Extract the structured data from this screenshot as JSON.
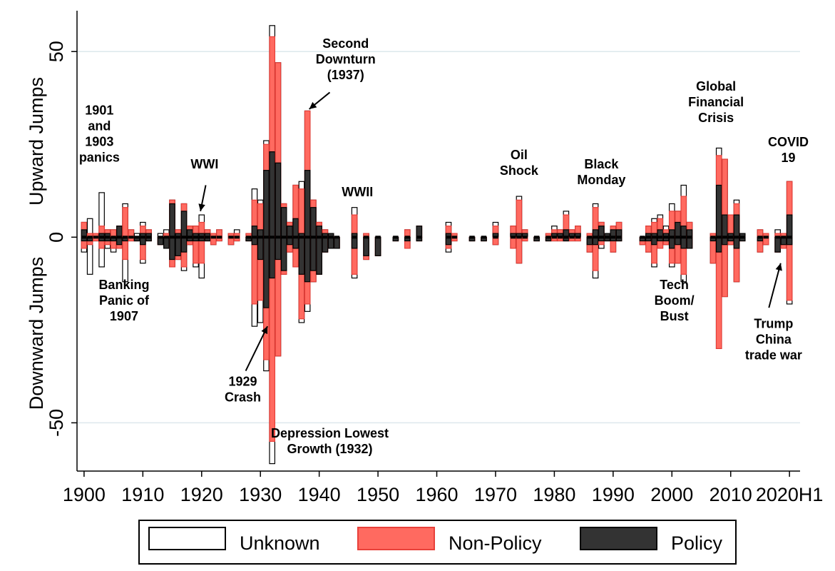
{
  "chart_data": {
    "type": "bar",
    "title": "",
    "ylabel_top": "Upward Jumps",
    "ylabel_bottom": "Downward Jumps",
    "xlabel": "",
    "ylim": [
      -63,
      61
    ],
    "xlim": [
      1898.8,
      2021.8
    ],
    "yticks": [
      -50,
      0,
      50
    ],
    "ytick_labels": [
      "-50",
      "0",
      "50"
    ],
    "xticks": [
      1900,
      1910,
      1920,
      1930,
      1940,
      1950,
      1960,
      1970,
      1980,
      1990,
      2000,
      2010,
      2020
    ],
    "xtick_labels": [
      "1900",
      "1910",
      "1920",
      "1930",
      "1940",
      "1950",
      "1960",
      "1970",
      "1980",
      "1990",
      "2000",
      "2010",
      "2020H1"
    ],
    "grid": true,
    "legend_position": "bottom",
    "series": [
      {
        "name": "Unknown",
        "key": "unknown",
        "color": "#ffffff",
        "stroke": "#000000"
      },
      {
        "name": "Non-Policy",
        "key": "nonpolicy",
        "color": "#ff6a60",
        "stroke": "#e8403a"
      },
      {
        "name": "Policy",
        "key": "policy",
        "color": "#333333",
        "stroke": "#000000"
      }
    ],
    "bars": [
      {
        "x": 1900,
        "up": [
          4,
          4,
          2
        ],
        "down": [
          -4,
          -3,
          -1
        ]
      },
      {
        "x": 1901,
        "up": [
          5,
          1,
          0
        ],
        "down": [
          -10,
          -2,
          -1
        ]
      },
      {
        "x": 1902,
        "up": [
          1,
          1,
          0
        ],
        "down": [
          -1,
          -1,
          0
        ]
      },
      {
        "x": 1903,
        "up": [
          12,
          3,
          1
        ],
        "down": [
          -8,
          -3,
          -1
        ]
      },
      {
        "x": 1904,
        "up": [
          2,
          2,
          1
        ],
        "down": [
          -3,
          -2,
          -1
        ]
      },
      {
        "x": 1905,
        "up": [
          2,
          2,
          0
        ],
        "down": [
          -4,
          -3,
          -1
        ]
      },
      {
        "x": 1906,
        "up": [
          3,
          3,
          3
        ],
        "down": [
          -3,
          -3,
          -2
        ]
      },
      {
        "x": 1907,
        "up": [
          9,
          8,
          0
        ],
        "down": [
          -12,
          -6,
          -1
        ]
      },
      {
        "x": 1908,
        "up": [
          2,
          2,
          0
        ],
        "down": [
          -1,
          -1,
          0
        ]
      },
      {
        "x": 1909,
        "up": [
          1,
          0,
          0
        ],
        "down": [
          -1,
          -1,
          -1
        ]
      },
      {
        "x": 1910,
        "up": [
          4,
          3,
          1
        ],
        "down": [
          -7,
          -6,
          -2
        ]
      },
      {
        "x": 1911,
        "up": [
          2,
          2,
          1
        ],
        "down": [
          -1,
          -1,
          -1
        ]
      },
      {
        "x": 1913,
        "up": [
          1,
          0,
          0
        ],
        "down": [
          -2,
          -2,
          -2
        ]
      },
      {
        "x": 1914,
        "up": [
          2,
          1,
          0
        ],
        "down": [
          -3,
          -3,
          -3
        ]
      },
      {
        "x": 1915,
        "up": [
          10,
          10,
          9
        ],
        "down": [
          -8,
          -8,
          -6
        ]
      },
      {
        "x": 1916,
        "up": [
          2,
          2,
          1
        ],
        "down": [
          -6,
          -6,
          -5
        ]
      },
      {
        "x": 1917,
        "up": [
          9,
          9,
          7
        ],
        "down": [
          -9,
          -8,
          -4
        ]
      },
      {
        "x": 1918,
        "up": [
          3,
          3,
          2
        ],
        "down": [
          -2,
          -2,
          -1
        ]
      },
      {
        "x": 1919,
        "up": [
          3,
          3,
          1
        ],
        "down": [
          -8,
          -7,
          -1
        ]
      },
      {
        "x": 1920,
        "up": [
          6,
          4,
          1
        ],
        "down": [
          -11,
          -7,
          -1
        ]
      },
      {
        "x": 1921,
        "up": [
          2,
          2,
          1
        ],
        "down": [
          -1,
          -1,
          -1
        ]
      },
      {
        "x": 1922,
        "up": [
          1,
          1,
          0
        ],
        "down": [
          -2,
          -2,
          0
        ]
      },
      {
        "x": 1923,
        "up": [
          2,
          2,
          0
        ],
        "down": [
          -1,
          -1,
          0
        ]
      },
      {
        "x": 1925,
        "up": [
          1,
          1,
          0
        ],
        "down": [
          -2,
          -2,
          0
        ]
      },
      {
        "x": 1926,
        "up": [
          2,
          1,
          0
        ],
        "down": [
          -1,
          -1,
          0
        ]
      },
      {
        "x": 1928,
        "up": [
          1,
          1,
          0
        ],
        "down": [
          -1,
          -1,
          -1
        ]
      },
      {
        "x": 1929,
        "up": [
          13,
          10,
          3
        ],
        "down": [
          -24,
          -18,
          -2
        ]
      },
      {
        "x": 1930,
        "up": [
          10,
          9,
          2
        ],
        "down": [
          -23,
          -17,
          -6
        ]
      },
      {
        "x": 1931,
        "up": [
          26,
          25,
          18
        ],
        "down": [
          -36,
          -33,
          -19
        ]
      },
      {
        "x": 1932,
        "up": [
          57,
          54,
          23
        ],
        "down": [
          -61,
          -55,
          -11
        ]
      },
      {
        "x": 1933,
        "up": [
          47,
          47,
          20
        ],
        "down": [
          -32,
          -32,
          -6
        ]
      },
      {
        "x": 1934,
        "up": [
          9,
          9,
          8
        ],
        "down": [
          -10,
          -10,
          -9
        ]
      },
      {
        "x": 1935,
        "up": [
          4,
          4,
          3
        ],
        "down": [
          -4,
          -4,
          -2
        ]
      },
      {
        "x": 1936,
        "up": [
          14,
          14,
          5
        ],
        "down": [
          -8,
          -8,
          -3
        ]
      },
      {
        "x": 1937,
        "up": [
          15,
          13,
          1
        ],
        "down": [
          -23,
          -22,
          -10
        ]
      },
      {
        "x": 1938,
        "up": [
          34,
          34,
          18
        ],
        "down": [
          -20,
          -18,
          -12
        ]
      },
      {
        "x": 1939,
        "up": [
          10,
          10,
          8
        ],
        "down": [
          -12,
          -12,
          -9
        ]
      },
      {
        "x": 1940,
        "up": [
          4,
          4,
          3
        ],
        "down": [
          -10,
          -10,
          -10
        ]
      },
      {
        "x": 1941,
        "up": [
          2,
          2,
          1
        ],
        "down": [
          -4,
          -4,
          -4
        ]
      },
      {
        "x": 1942,
        "up": [
          1,
          1,
          1
        ],
        "down": [
          -3,
          -3,
          -3
        ]
      },
      {
        "x": 1943,
        "up": [
          0,
          0,
          0
        ],
        "down": [
          -3,
          -3,
          -3
        ]
      },
      {
        "x": 1946,
        "up": [
          8,
          6,
          1
        ],
        "down": [
          -11,
          -10,
          -3
        ]
      },
      {
        "x": 1948,
        "up": [
          1,
          1,
          0
        ],
        "down": [
          -6,
          -6,
          -5
        ]
      },
      {
        "x": 1950,
        "up": [
          0,
          0,
          0
        ],
        "down": [
          -5,
          -5,
          -5
        ]
      },
      {
        "x": 1953,
        "up": [
          0,
          0,
          0
        ],
        "down": [
          -1,
          -1,
          -1
        ]
      },
      {
        "x": 1955,
        "up": [
          2,
          2,
          0
        ],
        "down": [
          -3,
          -3,
          -1
        ]
      },
      {
        "x": 1957,
        "up": [
          3,
          3,
          3
        ],
        "down": [
          -1,
          -1,
          -1
        ]
      },
      {
        "x": 1962,
        "up": [
          4,
          3,
          1
        ],
        "down": [
          -4,
          -3,
          -2
        ]
      },
      {
        "x": 1963,
        "up": [
          1,
          1,
          0
        ],
        "down": [
          -1,
          -1,
          0
        ]
      },
      {
        "x": 1966,
        "up": [
          0,
          0,
          0
        ],
        "down": [
          -1,
          -1,
          -1
        ]
      },
      {
        "x": 1968,
        "up": [
          0,
          0,
          0
        ],
        "down": [
          -1,
          -1,
          -1
        ]
      },
      {
        "x": 1970,
        "up": [
          4,
          3,
          1
        ],
        "down": [
          -2,
          -2,
          0
        ]
      },
      {
        "x": 1973,
        "up": [
          3,
          3,
          1
        ],
        "down": [
          -3,
          -3,
          0
        ]
      },
      {
        "x": 1974,
        "up": [
          11,
          10,
          1
        ],
        "down": [
          -7,
          -7,
          0
        ]
      },
      {
        "x": 1975,
        "up": [
          2,
          2,
          1
        ],
        "down": [
          -1,
          -1,
          0
        ]
      },
      {
        "x": 1977,
        "up": [
          0,
          0,
          0
        ],
        "down": [
          -1,
          -1,
          -1
        ]
      },
      {
        "x": 1979,
        "up": [
          1,
          1,
          0
        ],
        "down": [
          -1,
          -1,
          -1
        ]
      },
      {
        "x": 1980,
        "up": [
          3,
          2,
          1
        ],
        "down": [
          -1,
          -1,
          0
        ]
      },
      {
        "x": 1981,
        "up": [
          2,
          2,
          1
        ],
        "down": [
          -1,
          -1,
          0
        ]
      },
      {
        "x": 1982,
        "up": [
          7,
          6,
          2
        ],
        "down": [
          -1,
          -1,
          -1
        ]
      },
      {
        "x": 1983,
        "up": [
          2,
          2,
          1
        ],
        "down": [
          -1,
          -1,
          0
        ]
      },
      {
        "x": 1984,
        "up": [
          3,
          3,
          1
        ],
        "down": [
          -1,
          -1,
          0
        ]
      },
      {
        "x": 1986,
        "up": [
          1,
          1,
          0
        ],
        "down": [
          -4,
          -4,
          -2
        ]
      },
      {
        "x": 1987,
        "up": [
          9,
          8,
          2
        ],
        "down": [
          -11,
          -9,
          -2
        ]
      },
      {
        "x": 1988,
        "up": [
          4,
          4,
          3
        ],
        "down": [
          -3,
          -2,
          -1
        ]
      },
      {
        "x": 1989,
        "up": [
          1,
          1,
          1
        ],
        "down": [
          -1,
          -1,
          -1
        ]
      },
      {
        "x": 1990,
        "up": [
          3,
          3,
          2
        ],
        "down": [
          -4,
          -4,
          -1
        ]
      },
      {
        "x": 1991,
        "up": [
          4,
          4,
          2
        ],
        "down": [
          -1,
          -1,
          -1
        ]
      },
      {
        "x": 1995,
        "up": [
          0,
          0,
          0
        ],
        "down": [
          -2,
          -2,
          -1
        ]
      },
      {
        "x": 1996,
        "up": [
          3,
          3,
          1
        ],
        "down": [
          -4,
          -4,
          -1
        ]
      },
      {
        "x": 1997,
        "up": [
          5,
          4,
          1
        ],
        "down": [
          -8,
          -7,
          -2
        ]
      },
      {
        "x": 1998,
        "up": [
          6,
          5,
          2
        ],
        "down": [
          -3,
          -3,
          -1
        ]
      },
      {
        "x": 1999,
        "up": [
          3,
          2,
          1
        ],
        "down": [
          -2,
          -2,
          -1
        ]
      },
      {
        "x": 2000,
        "up": [
          9,
          7,
          2
        ],
        "down": [
          -8,
          -7,
          -3
        ]
      },
      {
        "x": 2001,
        "up": [
          7,
          7,
          4
        ],
        "down": [
          -7,
          -7,
          -2
        ]
      },
      {
        "x": 2002,
        "up": [
          14,
          11,
          3
        ],
        "down": [
          -12,
          -10,
          -3
        ]
      },
      {
        "x": 2003,
        "up": [
          4,
          4,
          2
        ],
        "down": [
          -3,
          -3,
          -3
        ]
      },
      {
        "x": 2007,
        "up": [
          1,
          1,
          0
        ],
        "down": [
          -7,
          -7,
          -1
        ]
      },
      {
        "x": 2008,
        "up": [
          24,
          22,
          14
        ],
        "down": [
          -30,
          -30,
          -4
        ]
      },
      {
        "x": 2009,
        "up": [
          21,
          21,
          6
        ],
        "down": [
          -16,
          -16,
          -2
        ]
      },
      {
        "x": 2010,
        "up": [
          6,
          6,
          1
        ],
        "down": [
          -2,
          -2,
          -1
        ]
      },
      {
        "x": 2011,
        "up": [
          10,
          9,
          6
        ],
        "down": [
          -12,
          -12,
          -3
        ]
      },
      {
        "x": 2012,
        "up": [
          1,
          1,
          1
        ],
        "down": [
          -1,
          -1,
          -1
        ]
      },
      {
        "x": 2015,
        "up": [
          2,
          2,
          0
        ],
        "down": [
          -4,
          -4,
          -1
        ]
      },
      {
        "x": 2016,
        "up": [
          1,
          1,
          0
        ],
        "down": [
          -2,
          -2,
          0
        ]
      },
      {
        "x": 2018,
        "up": [
          2,
          1,
          0
        ],
        "down": [
          -4,
          -4,
          -4
        ]
      },
      {
        "x": 2019,
        "up": [
          1,
          1,
          0
        ],
        "down": [
          -3,
          -3,
          -2
        ]
      },
      {
        "x": 2020,
        "up": [
          15,
          15,
          6
        ],
        "down": [
          -18,
          -17,
          -2
        ]
      }
    ],
    "annotations": [
      {
        "id": "1901-1903",
        "lines": [
          "1901",
          "and",
          "1903",
          "panics"
        ],
        "x": 1902.6,
        "y": 33
      },
      {
        "id": "banking-panic-1907",
        "lines": [
          "Banking",
          "Panic of",
          "1907"
        ],
        "x": 1906.8,
        "y": -14
      },
      {
        "id": "wwi",
        "lines": [
          "WWI"
        ],
        "x": 1920.5,
        "y": 18.5
      },
      {
        "id": "crash-1929",
        "lines": [
          "1929",
          "Crash"
        ],
        "x": 1927.0,
        "y": -40
      },
      {
        "id": "second-downturn",
        "lines": [
          "Second",
          "Downturn",
          "(1937)"
        ],
        "x": 1944.5,
        "y": 51
      },
      {
        "id": "depression-lowest",
        "lines": [
          "Depression Lowest",
          "Growth (1932)"
        ],
        "x": 1941.8,
        "y": -54
      },
      {
        "id": "wwii",
        "lines": [
          "WWII"
        ],
        "x": 1946.5,
        "y": 11
      },
      {
        "id": "oil-shock",
        "lines": [
          "Oil",
          "Shock"
        ],
        "x": 1974.0,
        "y": 21
      },
      {
        "id": "black-monday",
        "lines": [
          "Black",
          "Monday"
        ],
        "x": 1988.0,
        "y": 18.5
      },
      {
        "id": "tech-boom",
        "lines": [
          "Tech",
          "Boom/",
          "Bust"
        ],
        "x": 2000.4,
        "y": -14
      },
      {
        "id": "gfc",
        "lines": [
          "Global",
          "Financial",
          "Crisis"
        ],
        "x": 2007.5,
        "y": 39.5
      },
      {
        "id": "covid",
        "lines": [
          "COVID",
          "19"
        ],
        "x": 2019.8,
        "y": 24.5
      },
      {
        "id": "trump-china",
        "lines": [
          "Trump",
          "China",
          "trade war"
        ],
        "x": 2017.3,
        "y": -24.5
      }
    ],
    "arrows": [
      {
        "id": "arrow-wwi",
        "from": [
          1920.7,
          14
        ],
        "to": [
          1919.8,
          7
        ]
      },
      {
        "id": "arrow-1929",
        "from": [
          1927.5,
          -36
        ],
        "to": [
          1931.2,
          -24
        ]
      },
      {
        "id": "arrow-1937",
        "from": [
          1941.8,
          39
        ],
        "to": [
          1938.3,
          34.5
        ]
      },
      {
        "id": "arrow-trump",
        "from": [
          2016.5,
          -19
        ],
        "to": [
          2018.5,
          -7
        ]
      }
    ]
  },
  "legend": {
    "items": [
      {
        "key": "unknown",
        "label": "Unknown"
      },
      {
        "key": "nonpolicy",
        "label": "Non-Policy"
      },
      {
        "key": "policy",
        "label": "Policy"
      }
    ]
  }
}
